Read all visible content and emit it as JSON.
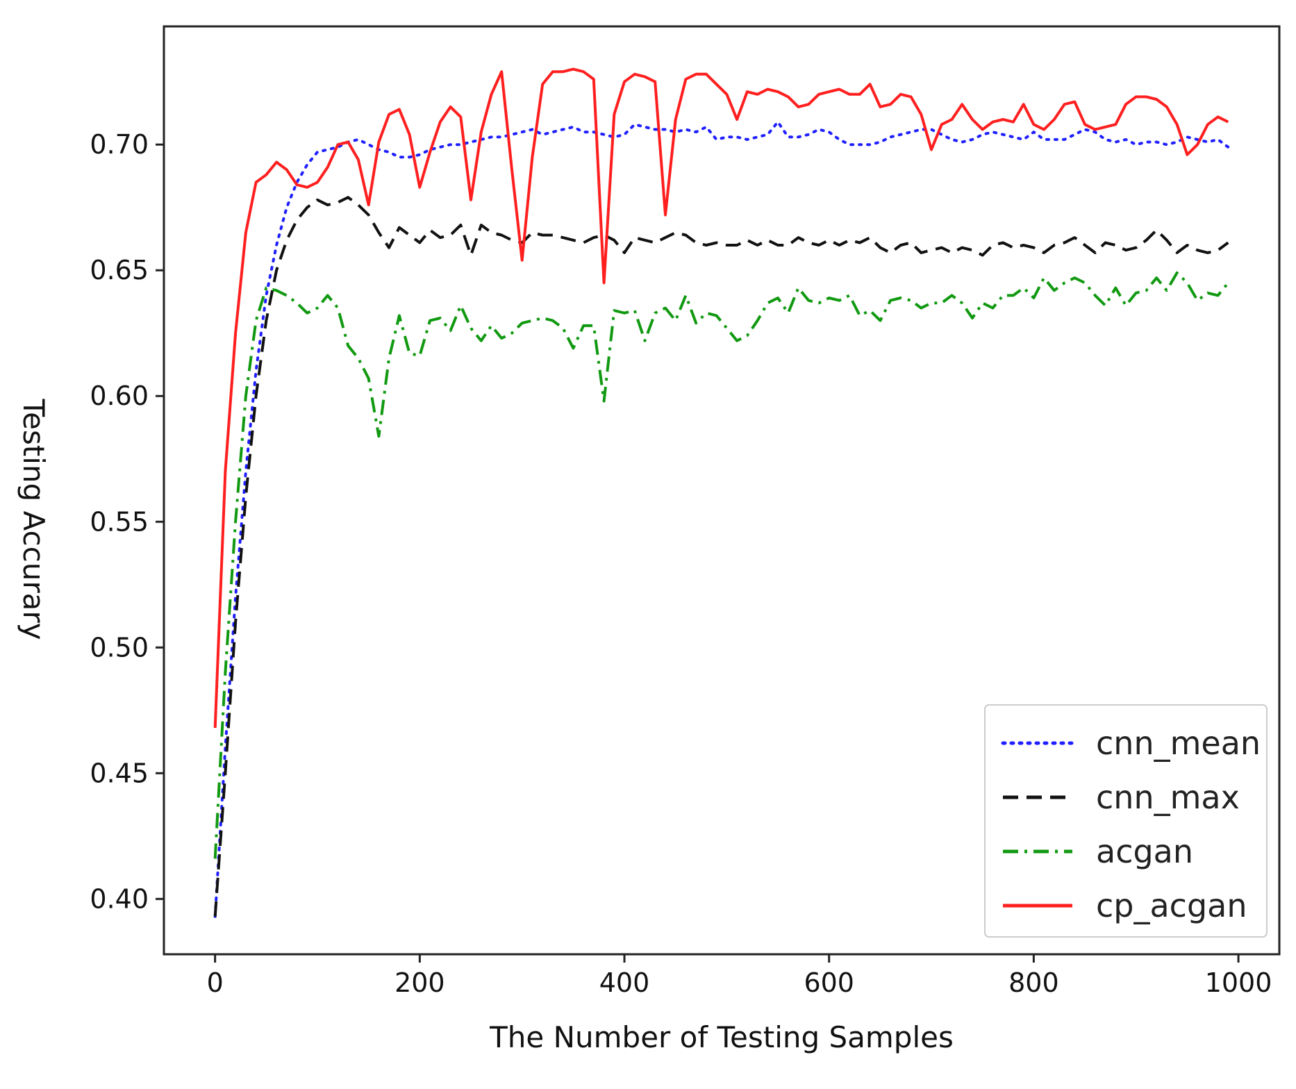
{
  "chart_data": {
    "type": "line",
    "title": "",
    "xlabel": "The Number of Testing Samples",
    "ylabel": "Testing Accurary",
    "xlim": [
      -50,
      1040
    ],
    "ylim": [
      0.378,
      0.747
    ],
    "xticks": [
      0,
      200,
      400,
      600,
      800,
      1000
    ],
    "xtick_labels": [
      "0",
      "200",
      "400",
      "600",
      "800",
      "1000"
    ],
    "yticks": [
      0.4,
      0.45,
      0.5,
      0.55,
      0.6,
      0.65,
      0.7
    ],
    "ytick_labels": [
      "0.40",
      "0.45",
      "0.50",
      "0.55",
      "0.60",
      "0.65",
      "0.70"
    ],
    "grid": false,
    "legend": {
      "position": "lower-right"
    },
    "x": [
      0,
      10,
      20,
      30,
      40,
      50,
      60,
      70,
      80,
      90,
      100,
      110,
      120,
      130,
      140,
      150,
      160,
      170,
      180,
      190,
      200,
      210,
      220,
      230,
      240,
      250,
      260,
      270,
      280,
      290,
      300,
      310,
      320,
      330,
      340,
      350,
      360,
      370,
      380,
      390,
      400,
      410,
      420,
      430,
      440,
      450,
      460,
      470,
      480,
      490,
      500,
      510,
      520,
      530,
      540,
      550,
      560,
      570,
      580,
      590,
      600,
      610,
      620,
      630,
      640,
      650,
      660,
      670,
      680,
      690,
      700,
      710,
      720,
      730,
      740,
      750,
      760,
      770,
      780,
      790,
      800,
      810,
      820,
      830,
      840,
      850,
      860,
      870,
      880,
      890,
      900,
      910,
      920,
      930,
      940,
      950,
      960,
      970,
      980,
      990
    ],
    "series": [
      {
        "name": "cnn_mean",
        "color": "#1f1fff",
        "dash": "dotted",
        "values": [
          0.393,
          0.46,
          0.52,
          0.57,
          0.61,
          0.64,
          0.66,
          0.675,
          0.685,
          0.692,
          0.697,
          0.698,
          0.699,
          0.701,
          0.702,
          0.7,
          0.698,
          0.697,
          0.695,
          0.695,
          0.696,
          0.698,
          0.699,
          0.7,
          0.7,
          0.701,
          0.702,
          0.703,
          0.703,
          0.704,
          0.705,
          0.706,
          0.704,
          0.705,
          0.706,
          0.707,
          0.705,
          0.705,
          0.704,
          0.703,
          0.704,
          0.708,
          0.707,
          0.706,
          0.706,
          0.705,
          0.706,
          0.705,
          0.707,
          0.702,
          0.703,
          0.703,
          0.702,
          0.703,
          0.704,
          0.709,
          0.703,
          0.703,
          0.704,
          0.706,
          0.705,
          0.702,
          0.7,
          0.7,
          0.7,
          0.701,
          0.703,
          0.704,
          0.705,
          0.706,
          0.706,
          0.704,
          0.702,
          0.701,
          0.702,
          0.704,
          0.705,
          0.704,
          0.703,
          0.702,
          0.705,
          0.702,
          0.702,
          0.702,
          0.704,
          0.706,
          0.705,
          0.702,
          0.701,
          0.702,
          0.7,
          0.701,
          0.701,
          0.7,
          0.701,
          0.703,
          0.702,
          0.701,
          0.702,
          0.699
        ]
      },
      {
        "name": "cnn_max",
        "color": "#111111",
        "dash": "dashed",
        "values": [
          0.393,
          0.45,
          0.51,
          0.56,
          0.6,
          0.63,
          0.65,
          0.662,
          0.67,
          0.675,
          0.678,
          0.676,
          0.677,
          0.679,
          0.676,
          0.672,
          0.665,
          0.659,
          0.667,
          0.664,
          0.661,
          0.666,
          0.663,
          0.664,
          0.668,
          0.656,
          0.668,
          0.665,
          0.664,
          0.662,
          0.661,
          0.665,
          0.664,
          0.664,
          0.663,
          0.662,
          0.661,
          0.663,
          0.664,
          0.662,
          0.657,
          0.663,
          0.662,
          0.661,
          0.663,
          0.665,
          0.664,
          0.661,
          0.66,
          0.661,
          0.66,
          0.66,
          0.662,
          0.66,
          0.662,
          0.66,
          0.66,
          0.663,
          0.661,
          0.66,
          0.662,
          0.66,
          0.662,
          0.661,
          0.663,
          0.659,
          0.657,
          0.66,
          0.661,
          0.657,
          0.658,
          0.659,
          0.657,
          0.659,
          0.658,
          0.656,
          0.66,
          0.661,
          0.659,
          0.66,
          0.659,
          0.657,
          0.66,
          0.661,
          0.663,
          0.66,
          0.657,
          0.661,
          0.66,
          0.658,
          0.659,
          0.662,
          0.666,
          0.662,
          0.657,
          0.66,
          0.658,
          0.657,
          0.658,
          0.661
        ]
      },
      {
        "name": "acgan",
        "color": "#119911",
        "dash": "dashdot",
        "values": [
          0.416,
          0.49,
          0.55,
          0.6,
          0.63,
          0.643,
          0.642,
          0.64,
          0.637,
          0.633,
          0.635,
          0.64,
          0.635,
          0.62,
          0.615,
          0.607,
          0.584,
          0.615,
          0.632,
          0.617,
          0.616,
          0.63,
          0.631,
          0.626,
          0.636,
          0.627,
          0.622,
          0.628,
          0.623,
          0.625,
          0.629,
          0.63,
          0.631,
          0.63,
          0.627,
          0.619,
          0.628,
          0.628,
          0.598,
          0.634,
          0.633,
          0.634,
          0.622,
          0.633,
          0.635,
          0.63,
          0.64,
          0.629,
          0.633,
          0.632,
          0.627,
          0.622,
          0.624,
          0.63,
          0.637,
          0.639,
          0.633,
          0.643,
          0.638,
          0.637,
          0.639,
          0.638,
          0.64,
          0.632,
          0.634,
          0.63,
          0.638,
          0.639,
          0.638,
          0.635,
          0.637,
          0.637,
          0.64,
          0.637,
          0.631,
          0.637,
          0.635,
          0.64,
          0.64,
          0.643,
          0.639,
          0.647,
          0.642,
          0.645,
          0.647,
          0.645,
          0.64,
          0.636,
          0.643,
          0.636,
          0.641,
          0.642,
          0.647,
          0.642,
          0.649,
          0.645,
          0.638,
          0.641,
          0.64,
          0.645
        ]
      },
      {
        "name": "cp_acgan",
        "color": "#ff1f1f",
        "dash": "solid",
        "values": [
          0.468,
          0.57,
          0.625,
          0.665,
          0.685,
          0.688,
          0.693,
          0.69,
          0.684,
          0.683,
          0.685,
          0.691,
          0.7,
          0.701,
          0.694,
          0.676,
          0.701,
          0.712,
          0.714,
          0.704,
          0.683,
          0.697,
          0.709,
          0.715,
          0.711,
          0.678,
          0.705,
          0.72,
          0.729,
          0.69,
          0.654,
          0.695,
          0.724,
          0.729,
          0.729,
          0.73,
          0.729,
          0.726,
          0.645,
          0.712,
          0.725,
          0.728,
          0.727,
          0.725,
          0.672,
          0.71,
          0.726,
          0.728,
          0.728,
          0.724,
          0.72,
          0.71,
          0.721,
          0.72,
          0.722,
          0.721,
          0.719,
          0.715,
          0.716,
          0.72,
          0.721,
          0.722,
          0.72,
          0.72,
          0.724,
          0.715,
          0.716,
          0.72,
          0.719,
          0.712,
          0.698,
          0.708,
          0.71,
          0.716,
          0.71,
          0.706,
          0.709,
          0.71,
          0.709,
          0.716,
          0.708,
          0.706,
          0.71,
          0.716,
          0.717,
          0.708,
          0.706,
          0.707,
          0.708,
          0.716,
          0.719,
          0.719,
          0.718,
          0.715,
          0.708,
          0.696,
          0.7,
          0.708,
          0.711,
          0.709
        ]
      }
    ]
  }
}
